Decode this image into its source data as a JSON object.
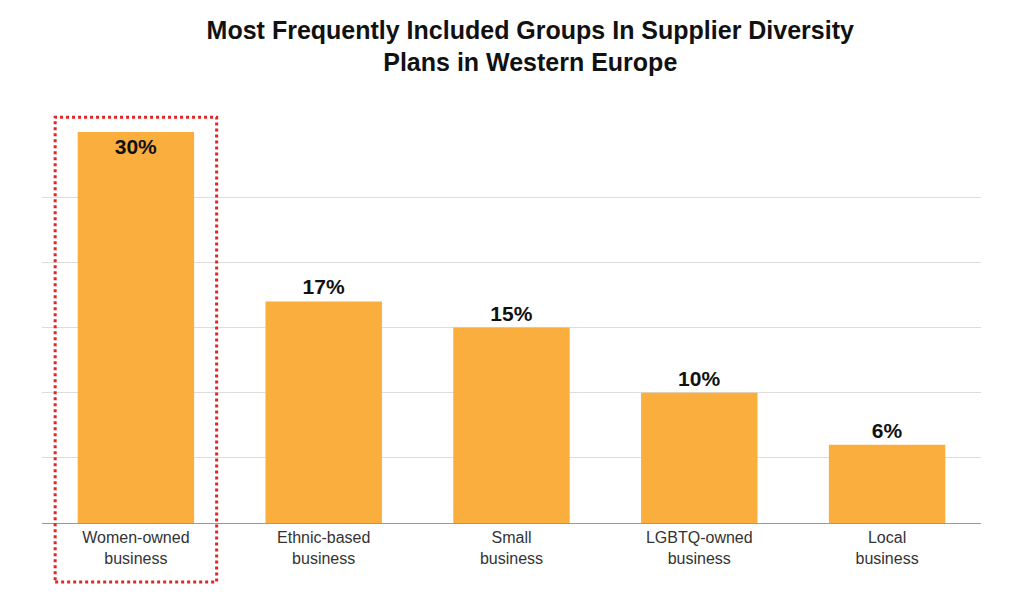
{
  "chart_data": {
    "type": "bar",
    "title": "Most Frequently Included Groups In Supplier Diversity\nPlans in Western Europe",
    "categories": [
      "Women-owned business",
      "Ethnic-based business",
      "Small business",
      "LGBTQ-owned business",
      "Local business"
    ],
    "values": [
      30,
      17,
      15,
      10,
      6
    ],
    "value_labels": [
      "30%",
      "17%",
      "15%",
      "10%",
      "6%"
    ],
    "color": "#f9ae3d",
    "ylim": [
      0,
      30
    ],
    "yticks": [
      0,
      5,
      10,
      15,
      20,
      25,
      30
    ],
    "grid": true,
    "data_labels": true,
    "tick_labels": "x"
  }
}
